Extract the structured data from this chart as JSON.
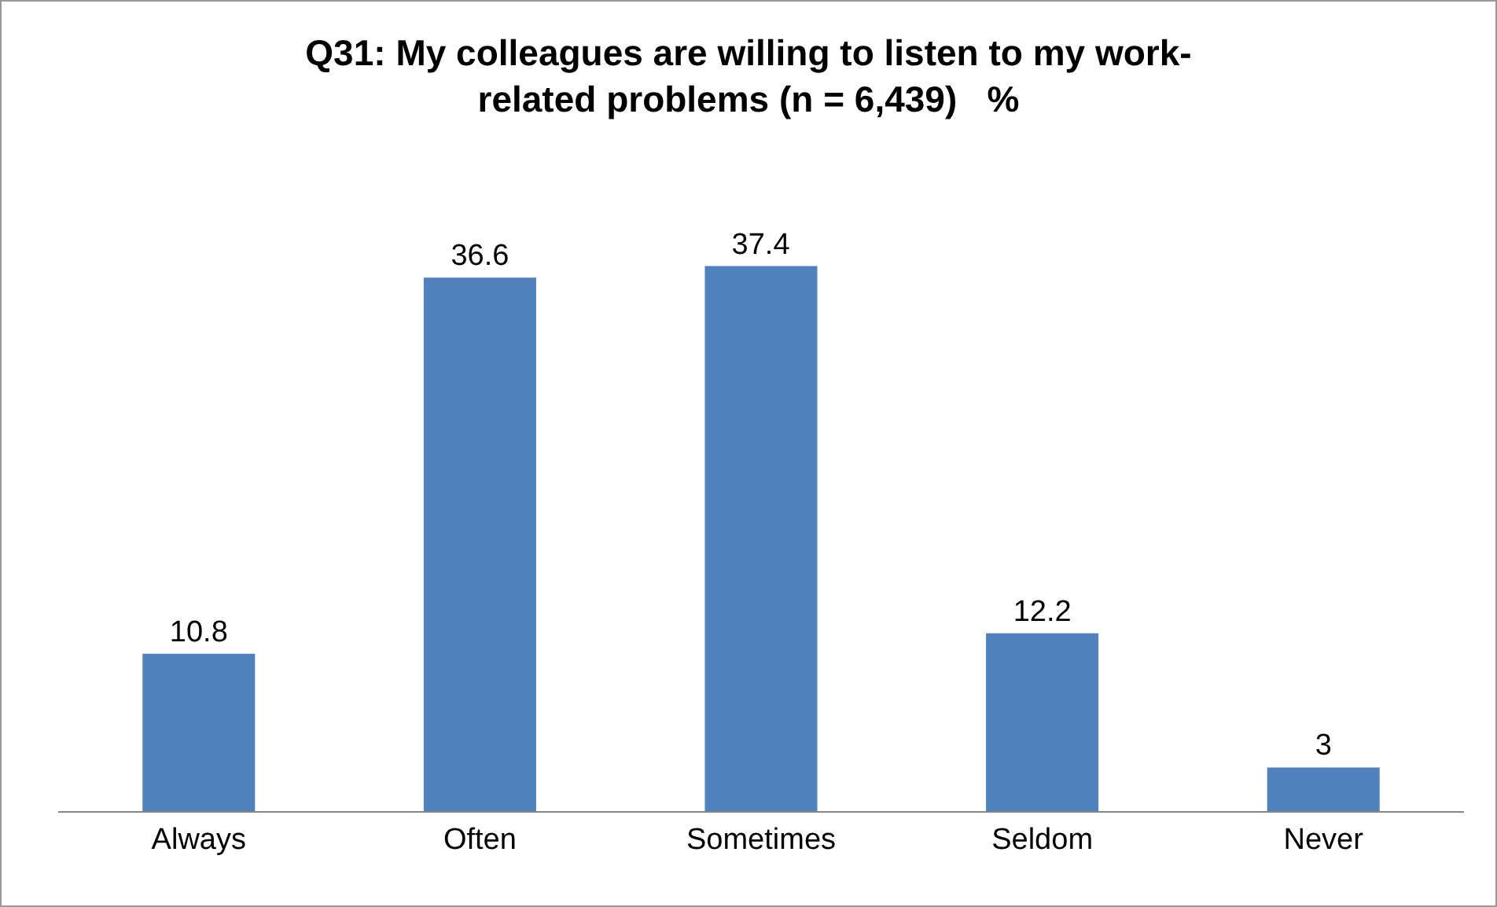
{
  "chart_data": {
    "type": "bar",
    "title": "Q31: My colleagues are willing to listen to my work-related problems (n = 6,439)   %",
    "categories": [
      "Always",
      "Often",
      "Sometimes",
      "Seldom",
      "Never"
    ],
    "values": [
      10.8,
      36.6,
      37.4,
      12.2,
      3
    ],
    "color": "#4f81bd",
    "data_labels": true,
    "grid": false,
    "legend": false
  }
}
